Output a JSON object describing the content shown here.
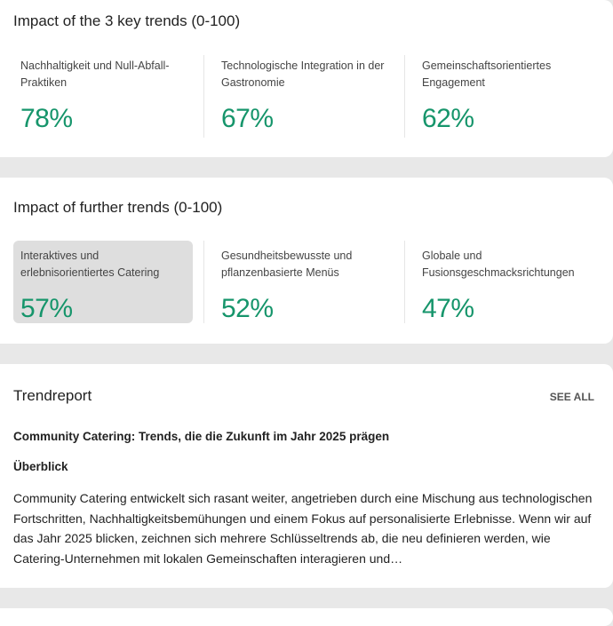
{
  "key_trends": {
    "title": "Impact of the 3 key trends (0-100)",
    "items": [
      {
        "label": "Nachhaltigkeit und Null-Abfall-Praktiken",
        "value": "78%"
      },
      {
        "label": "Technologische Integration in der Gastronomie",
        "value": "67%"
      },
      {
        "label": "Gemeinschaftsorientiertes Engagement",
        "value": "62%"
      }
    ]
  },
  "further_trends": {
    "title": "Impact of further trends (0-100)",
    "items": [
      {
        "label": "Interaktives und erlebnisorientiertes Catering",
        "value": "57%"
      },
      {
        "label": "Gesundheitsbewusste und pflanzenbasierte Menüs",
        "value": "52%"
      },
      {
        "label": "Globale und Fusionsgeschmacksrichtungen",
        "value": "47%"
      }
    ]
  },
  "trendreport": {
    "title": "Trendreport",
    "see_all": "SEE ALL",
    "headline": "Community Catering: Trends, die die Zukunft im Jahr 2025 prägen",
    "subheading": "Überblick",
    "body": "Community Catering entwickelt sich rasant weiter, angetrieben durch eine Mischung aus technologischen Fortschritten, Nachhaltigkeitsbemühungen und einem Fokus auf personalisierte Erlebnisse. Wenn wir auf das Jahr 2025 blicken, zeichnen sich mehrere Schlüsseltrends ab, die neu definieren werden, wie Catering-Unternehmen mit lokalen Gemeinschaften interagieren und…"
  }
}
